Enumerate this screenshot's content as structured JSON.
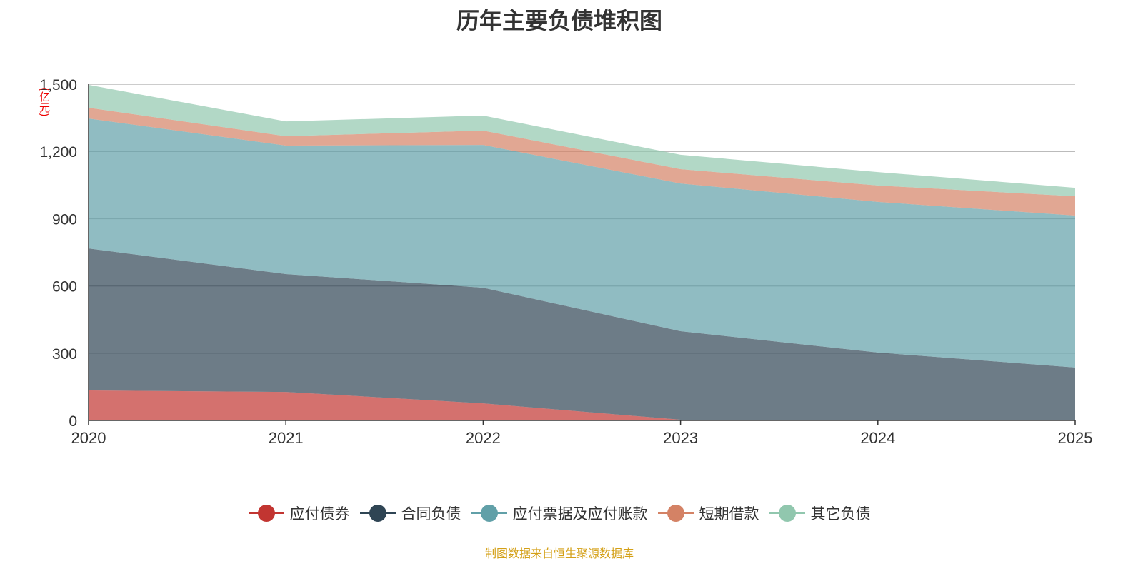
{
  "chart_data": {
    "type": "area",
    "stacked": true,
    "title": "历年主要负债堆积图",
    "ylabel": "(亿元)",
    "xlabel": "",
    "x": [
      "2020",
      "2021",
      "2022",
      "2023",
      "2024",
      "2025"
    ],
    "ylim": [
      0,
      1500
    ],
    "yticks": [
      "0",
      "300",
      "600",
      "900",
      "1,200",
      "1,500"
    ],
    "ytick_values": [
      0,
      300,
      600,
      900,
      1200,
      1500
    ],
    "grid": true,
    "legend_position": "bottom",
    "series": [
      {
        "name": "应付债券",
        "color": "#c23531",
        "values": [
          134,
          127,
          76,
          3,
          0,
          0
        ]
      },
      {
        "name": "合同负债",
        "color": "#2f4554",
        "values": [
          633,
          526,
          516,
          395,
          303,
          236
        ]
      },
      {
        "name": "应付票据及应付账款",
        "color": "#61a0a8",
        "values": [
          580,
          573,
          637,
          659,
          672,
          678
        ]
      },
      {
        "name": "短期借款",
        "color": "#d48265",
        "values": [
          48,
          42,
          64,
          64,
          73,
          86
        ]
      },
      {
        "name": "其它负债",
        "color": "#91c7ae",
        "values": [
          102,
          66,
          67,
          64,
          60,
          38
        ]
      }
    ]
  },
  "source": "制图数据来自恒生聚源数据库"
}
